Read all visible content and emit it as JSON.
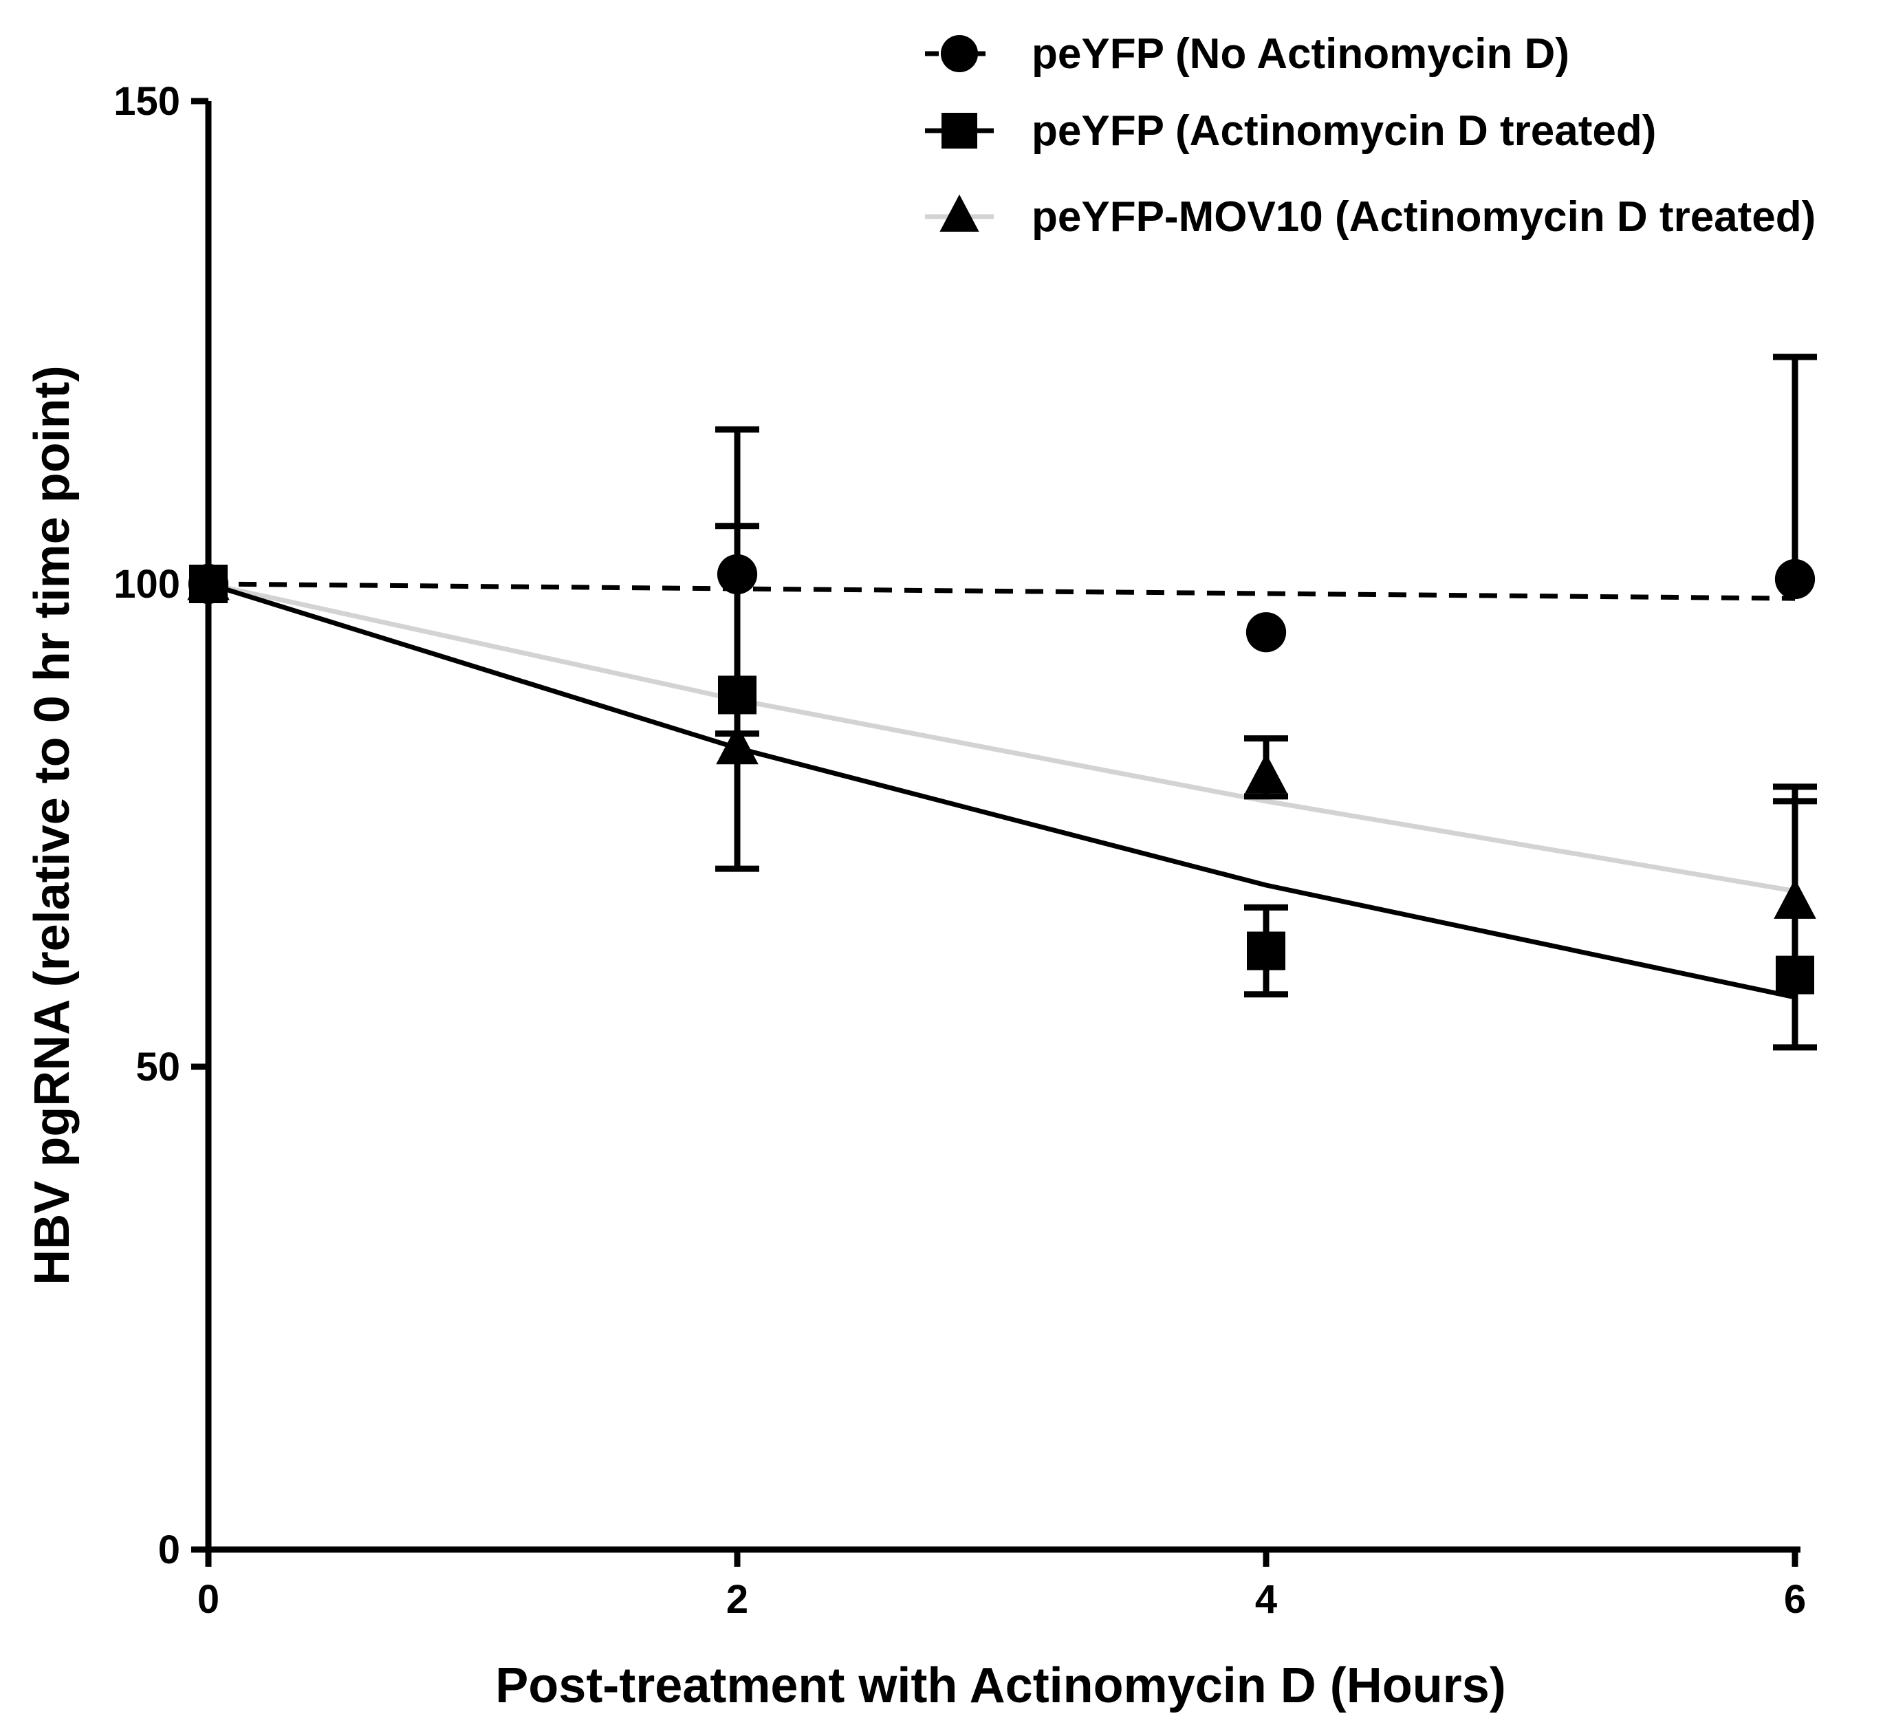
{
  "chart_data": {
    "type": "scatter",
    "title": "",
    "xlabel": "Post-treatment with Actinomycin D (Hours)",
    "ylabel": "HBV pgRNA (relative to 0 hr time point)",
    "xlim": [
      0,
      6
    ],
    "ylim": [
      0,
      150
    ],
    "xticks": [
      "0",
      "2",
      "4",
      "6"
    ],
    "yticks": [
      "0",
      "50",
      "100",
      "150"
    ],
    "legend_position": "top-right",
    "series": [
      {
        "name": "peYFP (No Actinomycin D)",
        "marker": "circle",
        "line_style": "dashed",
        "color": "#000000",
        "points": [
          {
            "x": 0,
            "y": 100,
            "err_low": null,
            "err_high": null
          },
          {
            "x": 2,
            "y": 101,
            "err_low": null,
            "err_high": 116
          },
          {
            "x": 4,
            "y": 95,
            "err_low": null,
            "err_high": null
          },
          {
            "x": 6,
            "y": 100.5,
            "err_low": null,
            "err_high": 123.5
          }
        ],
        "fit": [
          [
            0,
            100
          ],
          [
            2,
            99.5
          ],
          [
            4,
            99
          ],
          [
            6,
            98.5
          ]
        ]
      },
      {
        "name": "peYFP (Actinomycin D treated)",
        "marker": "square",
        "line_style": "solid",
        "color": "#000000",
        "points": [
          {
            "x": 0,
            "y": 100,
            "err_low": null,
            "err_high": null
          },
          {
            "x": 2,
            "y": 88.5,
            "err_low": 84.5,
            "err_high": 106
          },
          {
            "x": 4,
            "y": 62,
            "err_low": 57.5,
            "err_high": 66.5
          },
          {
            "x": 6,
            "y": 59.5,
            "err_low": 52,
            "err_high": 79
          }
        ],
        "fit": [
          [
            0,
            100
          ],
          [
            2,
            83
          ],
          [
            4,
            68.8
          ],
          [
            6,
            57.2
          ]
        ]
      },
      {
        "name": "peYFP-MOV10 (Actinomycin D treated)",
        "marker": "triangle",
        "line_style": "solid",
        "color": "#d3d3d3",
        "points": [
          {
            "x": 0,
            "y": 100,
            "err_low": null,
            "err_high": null
          },
          {
            "x": 2,
            "y": 83,
            "err_low": 70.5,
            "err_high": null
          },
          {
            "x": 4,
            "y": 80,
            "err_low": 78,
            "err_high": 84
          },
          {
            "x": 6,
            "y": 67,
            "err_low": null,
            "err_high": 77.5
          }
        ],
        "fit": [
          [
            0,
            100
          ],
          [
            2,
            88
          ],
          [
            4,
            77.5
          ],
          [
            6,
            68.2
          ]
        ]
      }
    ]
  }
}
